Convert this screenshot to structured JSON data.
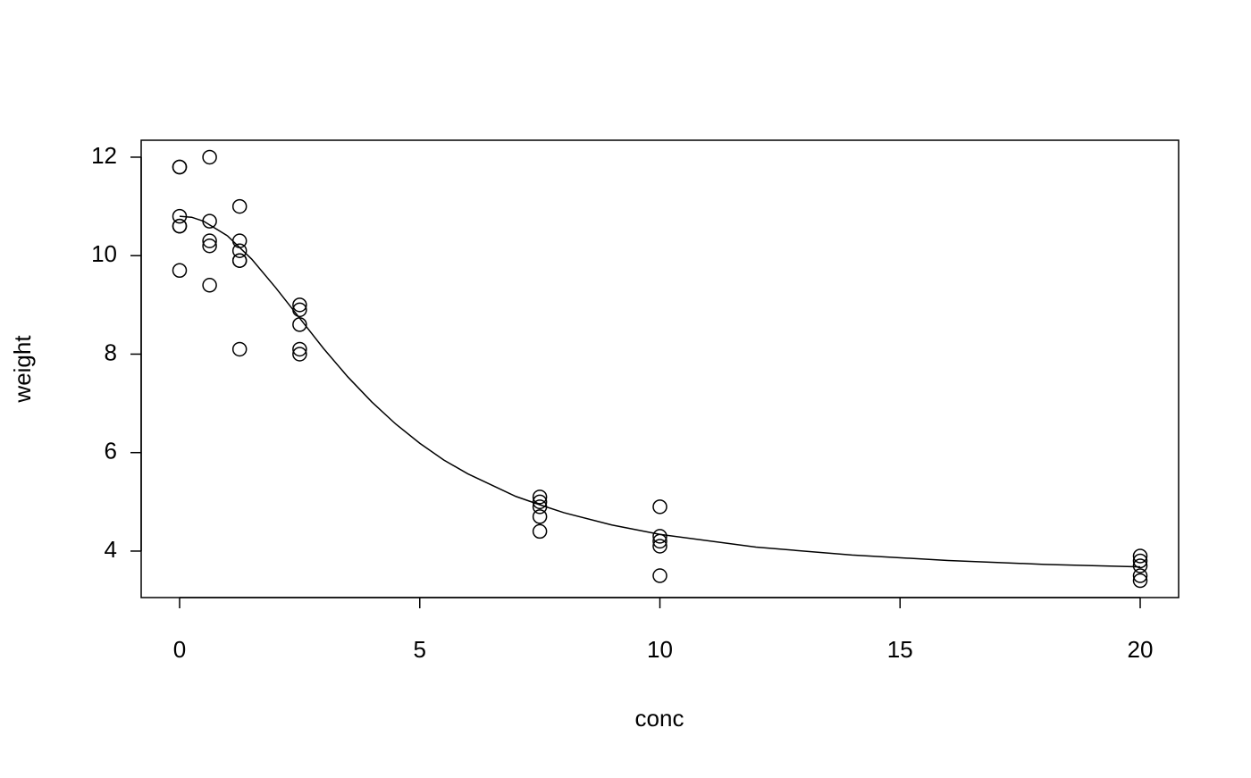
{
  "chart_data": {
    "type": "scatter",
    "x_label": "conc",
    "y_label": "weight",
    "xlim": [
      -0.8,
      20.8
    ],
    "ylim": [
      3.056,
      12.344
    ],
    "xticks": [
      0,
      5,
      10,
      15,
      20
    ],
    "yticks": [
      4,
      6,
      8,
      10,
      12
    ],
    "grid": false,
    "series": [
      {
        "type": "scatter",
        "color": "#000000",
        "x": [
          0,
          0,
          0,
          0,
          0,
          0,
          0.625,
          0.625,
          0.625,
          0.625,
          0.625,
          1.25,
          1.25,
          1.25,
          1.25,
          1.25,
          1.25,
          2.5,
          2.5,
          2.5,
          2.5,
          2.5,
          7.5,
          7.5,
          7.5,
          7.5,
          7.5,
          10,
          10,
          10,
          10,
          10,
          20,
          20,
          20,
          20,
          20
        ],
        "values": [
          11.8,
          11.8,
          10.8,
          10.6,
          10.6,
          9.7,
          12.0,
          10.7,
          10.3,
          10.2,
          9.4,
          11.0,
          10.3,
          10.1,
          9.9,
          9.9,
          8.1,
          9.0,
          8.9,
          8.6,
          8.1,
          8.0,
          5.1,
          5.0,
          4.9,
          4.7,
          4.4,
          4.9,
          4.3,
          4.2,
          4.1,
          3.5,
          3.9,
          3.8,
          3.7,
          3.5,
          3.4
        ]
      },
      {
        "type": "line",
        "color": "#000000",
        "x": [
          0,
          0.25,
          0.5,
          1,
          1.5,
          2,
          2.5,
          3,
          3.5,
          4,
          4.5,
          5,
          5.5,
          6,
          7,
          7.5,
          8,
          9,
          10,
          12,
          14,
          16,
          18,
          20
        ],
        "values": [
          10.8,
          10.78,
          10.7,
          10.4,
          9.93,
          9.35,
          8.73,
          8.11,
          7.54,
          7.03,
          6.58,
          6.19,
          5.85,
          5.57,
          5.11,
          4.94,
          4.78,
          4.53,
          4.34,
          4.08,
          3.92,
          3.81,
          3.73,
          3.68
        ]
      }
    ]
  }
}
